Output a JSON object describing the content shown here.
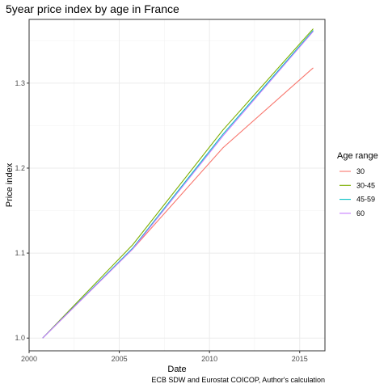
{
  "chart_data": {
    "type": "line",
    "title": "5year price index by age in France",
    "xlabel": "Date",
    "ylabel": "Price index",
    "caption": "ECB SDW and Eurostat COICOP, Author's calculation",
    "legend_title": "Age range",
    "legend_position": "right",
    "grid": true,
    "xlim": [
      2000,
      2016.4
    ],
    "ylim": [
      0.985,
      1.375
    ],
    "x_ticks": [
      2000,
      2005,
      2010,
      2015
    ],
    "y_ticks": [
      1.0,
      1.1,
      1.2,
      1.3
    ],
    "x_tick_labels": [
      "2000",
      "2005",
      "2010",
      "2015"
    ],
    "y_tick_labels": [
      "1.0",
      "1.1",
      "1.2",
      "1.3"
    ],
    "x": [
      2000.75,
      2005.75,
      2010.75,
      2015.75
    ],
    "series": [
      {
        "name": "30",
        "color": "#F8766D",
        "values": [
          1.0,
          1.105,
          1.224,
          1.318
        ]
      },
      {
        "name": "30-45",
        "color": "#7CAE00",
        "values": [
          1.0,
          1.11,
          1.245,
          1.364
        ]
      },
      {
        "name": "45-59",
        "color": "#00BFC4",
        "values": [
          1.0,
          1.106,
          1.24,
          1.362
        ]
      },
      {
        "name": "60",
        "color": "#C77CFF",
        "values": [
          1.0,
          1.105,
          1.238,
          1.361
        ]
      }
    ]
  }
}
